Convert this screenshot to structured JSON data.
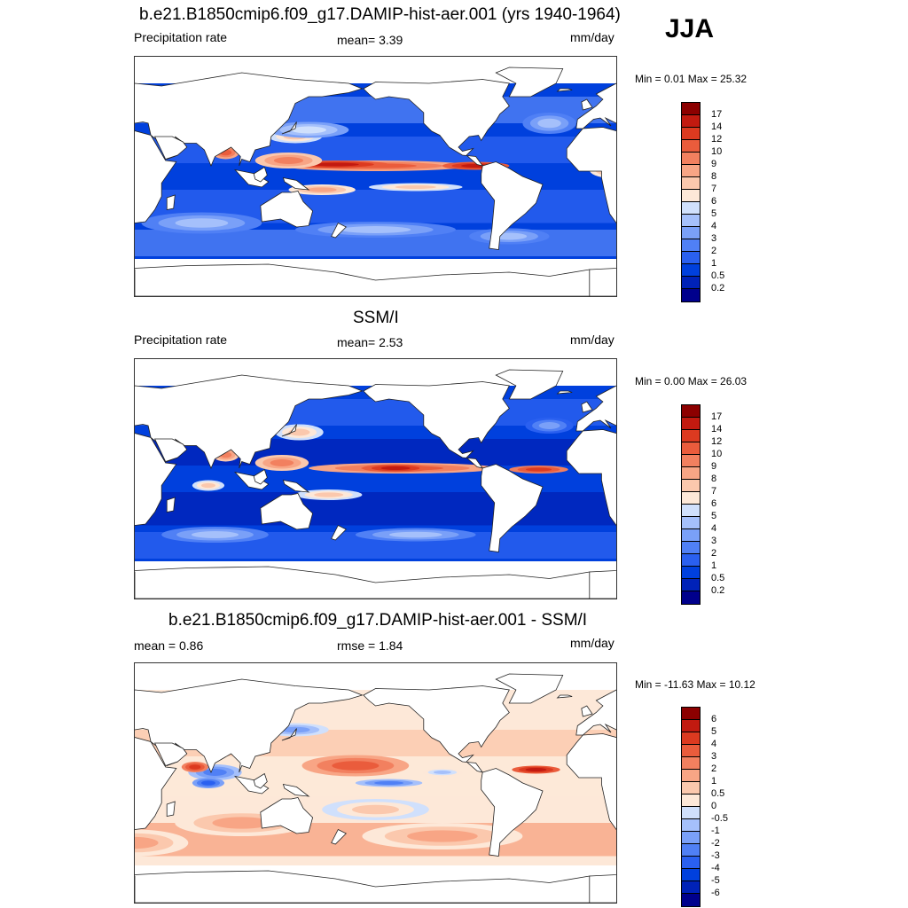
{
  "season": "JJA",
  "colors": {
    "precip": [
      "#00008c",
      "#0022b8",
      "#0040dd",
      "#2a60f0",
      "#5080f5",
      "#7aa0f8",
      "#a5c0fb",
      "#d0e0fc",
      "#fde8d8",
      "#fbc8ad",
      "#f8a585",
      "#f2805f",
      "#ea5c3c",
      "#dc3a20",
      "#c21a10",
      "#8c0000"
    ],
    "diff": [
      "#00008c",
      "#0022b8",
      "#0040dd",
      "#2a60f0",
      "#5080f5",
      "#7aa0f8",
      "#a5c0fb",
      "#d0e0fc",
      "#fde8d8",
      "#fbc8ad",
      "#f8a585",
      "#f2805f",
      "#ea5c3c",
      "#dc3a20",
      "#c21a10",
      "#8c0000"
    ]
  },
  "panels": [
    {
      "title": "b.e21.B1850cmip6.f09_g17.DAMIP-hist-aer.001 (yrs 1940-1964)",
      "left_label": "Precipitation rate",
      "center_label": "mean=   3.39",
      "units": "mm/day",
      "minmax": "Min =   0.01 Max =  25.32"
    },
    {
      "title": "SSM/I",
      "left_label": "Precipitation rate",
      "center_label": "mean=   2.53",
      "units": "mm/day",
      "minmax": "Min =   0.00 Max =  26.03"
    },
    {
      "title": "b.e21.B1850cmip6.f09_g17.DAMIP-hist-aer.001 - SSM/I",
      "left_label": "mean =   0.86",
      "center_label": "rmse =   1.84",
      "units": "mm/day",
      "minmax": "Min = -11.63 Max =  10.12"
    }
  ],
  "chart_data": [
    {
      "type": "heatmap",
      "title": "b.e21.B1850cmip6.f09_g17.DAMIP-hist-aer.001 (yrs 1940-1964)",
      "variable": "Precipitation rate",
      "units": "mm/day",
      "mean": 3.39,
      "min": 0.01,
      "max": 25.32,
      "colorbar_levels": [
        "17",
        "14",
        "12",
        "10",
        "9",
        "8",
        "7",
        "6",
        "5",
        "4",
        "3",
        "2",
        "1",
        "0.5",
        "0.2"
      ]
    },
    {
      "type": "heatmap",
      "title": "SSM/I",
      "variable": "Precipitation rate",
      "units": "mm/day",
      "mean": 2.53,
      "min": 0.0,
      "max": 26.03,
      "colorbar_levels": [
        "17",
        "14",
        "12",
        "10",
        "9",
        "8",
        "7",
        "6",
        "5",
        "4",
        "3",
        "2",
        "1",
        "0.5",
        "0.2"
      ]
    },
    {
      "type": "heatmap",
      "title": "b.e21.B1850cmip6.f09_g17.DAMIP-hist-aer.001 - SSM/I",
      "units": "mm/day",
      "mean": 0.86,
      "rmse": 1.84,
      "min": -11.63,
      "max": 10.12,
      "colorbar_levels": [
        "6",
        "5",
        "4",
        "3",
        "2",
        "1",
        "0.5",
        "0",
        "-0.5",
        "-1",
        "-2",
        "-3",
        "-4",
        "-5",
        "-6"
      ]
    }
  ]
}
